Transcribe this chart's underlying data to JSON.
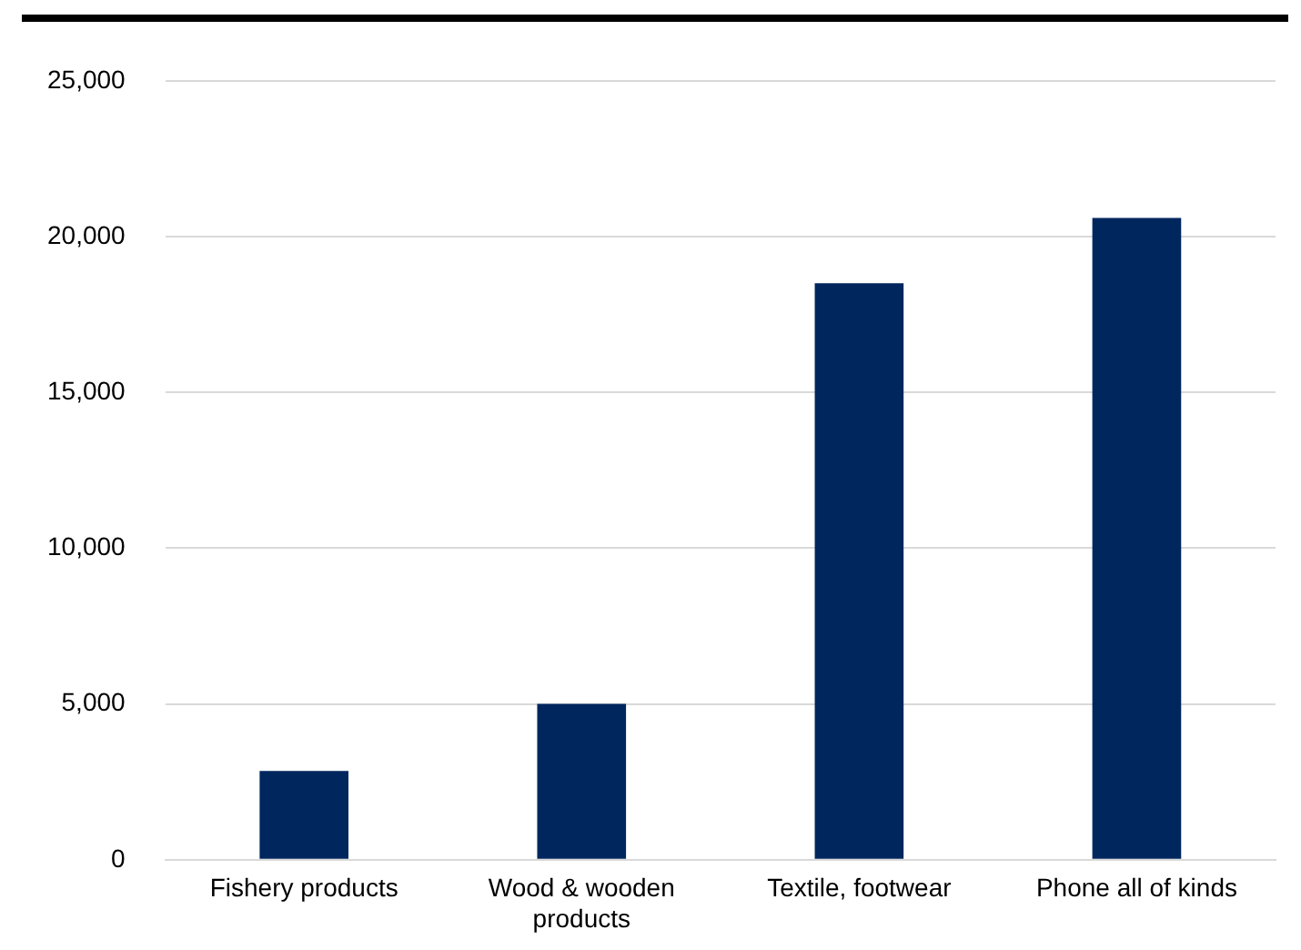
{
  "chart_data": {
    "type": "bar",
    "categories": [
      "Fishery products",
      "Wood & wooden products",
      "Textile, footwear",
      "Phone all of kinds"
    ],
    "values": [
      2850,
      5000,
      18500,
      20600
    ],
    "color": "#00265e",
    "ylim": [
      0,
      25000
    ],
    "yticks": [
      {
        "value": 0,
        "label": "0"
      },
      {
        "value": 5000,
        "label": "5,000"
      },
      {
        "value": 10000,
        "label": "10,000"
      },
      {
        "value": 15000,
        "label": "15,000"
      },
      {
        "value": 20000,
        "label": "20,000"
      },
      {
        "value": 25000,
        "label": "25,000"
      }
    ],
    "grid": "y"
  }
}
